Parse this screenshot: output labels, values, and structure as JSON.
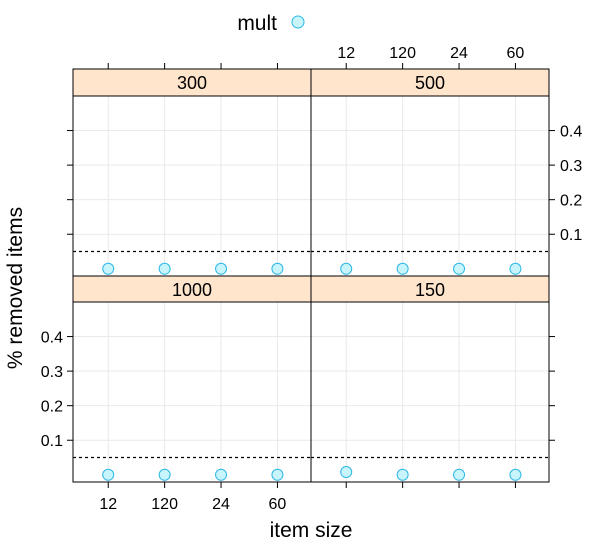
{
  "chart_data": {
    "type": "scatter",
    "xlabel": "item size",
    "ylabel": "% removed items",
    "legend": {
      "title": "mult",
      "placement": "top",
      "symbol": "circle"
    },
    "categories": [
      "12",
      "120",
      "24",
      "60"
    ],
    "y_ticks": [
      "0.1",
      "0.2",
      "0.3",
      "0.4"
    ],
    "y_tick_values": [
      0.1,
      0.2,
      0.3,
      0.4
    ],
    "ylim": [
      0,
      0.5
    ],
    "reference_line": 0.05,
    "grid": true,
    "panels": [
      {
        "strip": "300",
        "values": [
          0.0,
          0.0,
          0.0,
          0.0
        ]
      },
      {
        "strip": "500",
        "values": [
          0.0,
          0.0,
          0.0,
          0.0
        ]
      },
      {
        "strip": "1000",
        "values": [
          0.0,
          0.0,
          0.0,
          0.0
        ]
      },
      {
        "strip": "150",
        "values": [
          0.008,
          0.0,
          0.0,
          0.0
        ]
      }
    ],
    "colors": {
      "point_fill": "#c8f4fc",
      "point_stroke": "#2bb7e6",
      "strip_fill": "#ffe5cc",
      "grid": "#e9e9e9",
      "axis": "#000000"
    }
  }
}
